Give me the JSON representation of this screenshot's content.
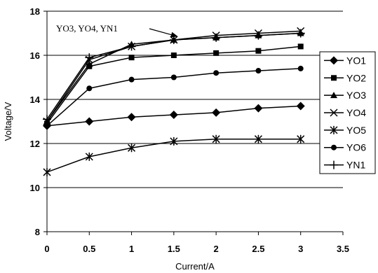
{
  "chart_data": {
    "type": "line",
    "xlabel": "Current/A",
    "ylabel": "Voltage/V",
    "xlim": [
      0,
      3.5
    ],
    "ylim": [
      8,
      18
    ],
    "xticks": [
      "0",
      "0.5",
      "1",
      "1.5",
      "2",
      "2.5",
      "3",
      "3.5"
    ],
    "yticks": [
      "8",
      "10",
      "12",
      "14",
      "16",
      "18"
    ],
    "grid": "horizontal",
    "legend_position": "right",
    "x": [
      0,
      0.5,
      1,
      1.5,
      2,
      2.5,
      3
    ],
    "series": [
      {
        "name": "YO1",
        "marker": "diamond",
        "values": [
          12.8,
          13.0,
          13.2,
          13.3,
          13.4,
          13.6,
          13.7
        ]
      },
      {
        "name": "YO2",
        "marker": "square",
        "values": [
          12.9,
          15.5,
          15.9,
          16.0,
          16.1,
          16.2,
          16.4
        ]
      },
      {
        "name": "YO3",
        "marker": "triangle",
        "values": [
          13.0,
          15.6,
          16.5,
          16.7,
          16.8,
          16.9,
          17.0
        ]
      },
      {
        "name": "YO4",
        "marker": "x",
        "values": [
          13.0,
          15.8,
          16.4,
          16.7,
          16.9,
          17.0,
          17.1
        ]
      },
      {
        "name": "YO5",
        "marker": "asterisk",
        "values": [
          10.7,
          11.4,
          11.8,
          12.1,
          12.2,
          12.2,
          12.2
        ]
      },
      {
        "name": "YO6",
        "marker": "circle",
        "values": [
          12.8,
          14.5,
          14.9,
          15.0,
          15.2,
          15.3,
          15.4
        ]
      },
      {
        "name": "YN1",
        "marker": "plus",
        "values": [
          13.1,
          15.9,
          16.4,
          16.7,
          16.8,
          16.9,
          17.0
        ]
      }
    ],
    "annotations": [
      {
        "text": "YO3, YO4, YN1",
        "points_to": {
          "x": 1.55,
          "y": 16.85
        }
      }
    ]
  }
}
